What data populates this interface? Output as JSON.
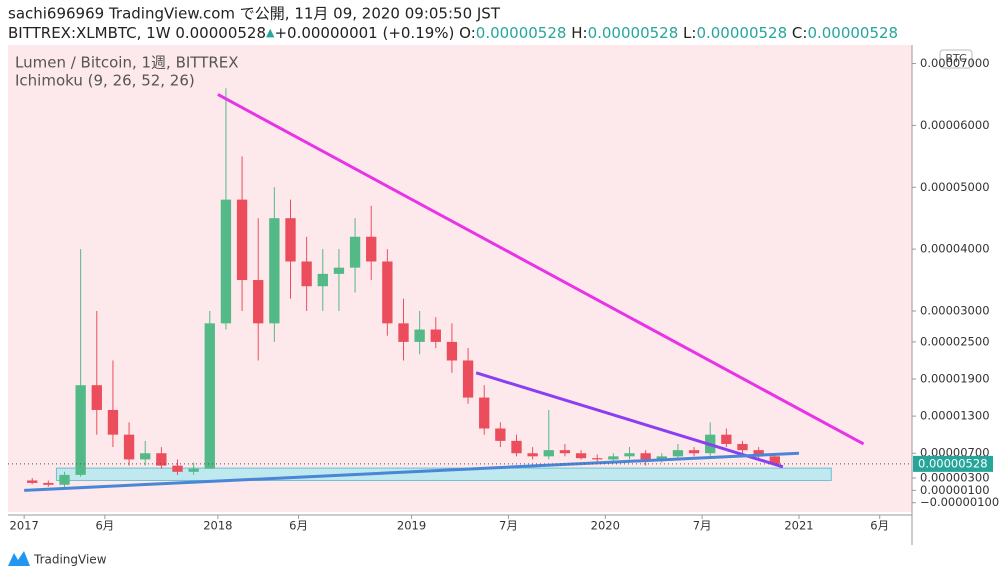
{
  "header": {
    "line1": "sachi696969 TradingView.com で公開, 11月 09, 2020 09:05:50 JST",
    "symbol": "BITTREX:XLMBTC, 1W",
    "last": "0.00000528",
    "arrow": "▲",
    "change": "+0.00000001 (+0.19%)",
    "ohlc": [
      {
        "label": "O:",
        "value": "0.00000528"
      },
      {
        "label": "H:",
        "value": "0.00000528"
      },
      {
        "label": "L:",
        "value": "0.00000528"
      },
      {
        "label": "C:",
        "value": "0.00000528"
      }
    ]
  },
  "chart_data": {
    "type": "candlestick",
    "title": "Lumen / Bitcoin, 1週, BITTREX",
    "indicator": "Ichimoku (9, 26, 52, 26)",
    "currency": "BTC",
    "up_color": "#53b987",
    "down_color": "#eb4d5c",
    "x": [
      "2017-01",
      "2017-02",
      "2017-03",
      "2017-04",
      "2017-05",
      "2017-06",
      "2017-07",
      "2017-08",
      "2017-09",
      "2017-10",
      "2017-11",
      "2017-12",
      "2018-01",
      "2018-02",
      "2018-03",
      "2018-04",
      "2018-05",
      "2018-06",
      "2018-07",
      "2018-08",
      "2018-09",
      "2018-10",
      "2018-11",
      "2018-12",
      "2019-01",
      "2019-02",
      "2019-03",
      "2019-04",
      "2019-05",
      "2019-06",
      "2019-07",
      "2019-08",
      "2019-09",
      "2019-10",
      "2019-11",
      "2019-12",
      "2020-01",
      "2020-02",
      "2020-03",
      "2020-04",
      "2020-05",
      "2020-06",
      "2020-07",
      "2020-08",
      "2020-09",
      "2020-10",
      "2020-11"
    ],
    "open": [
      2.6e-06,
      2.2e-06,
      1.9e-06,
      3.5e-06,
      1.8e-05,
      1.4e-05,
      1e-05,
      6e-06,
      7e-06,
      5e-06,
      4e-06,
      4.5e-06,
      2.8e-05,
      4.8e-05,
      3.5e-05,
      2.8e-05,
      4.5e-05,
      3.8e-05,
      3.4e-05,
      3.6e-05,
      3.7e-05,
      4.2e-05,
      3.8e-05,
      2.8e-05,
      2.5e-05,
      2.7e-05,
      2.5e-05,
      2.2e-05,
      1.6e-05,
      1.1e-05,
      9e-06,
      7e-06,
      6.5e-06,
      7.5e-06,
      7e-06,
      6.2e-06,
      6e-06,
      6.5e-06,
      7e-06,
      6e-06,
      6.5e-06,
      7.5e-06,
      7e-06,
      1e-05,
      8.5e-06,
      7.5e-06,
      6.5e-06
    ],
    "high": [
      3e-06,
      2.6e-06,
      4e-06,
      4e-05,
      3e-05,
      2.2e-05,
      1.2e-05,
      9e-06,
      8e-06,
      6e-06,
      5.5e-06,
      3e-05,
      6.6e-05,
      5.5e-05,
      4.5e-05,
      5e-05,
      4.8e-05,
      4.2e-05,
      4e-05,
      4e-05,
      4.5e-05,
      4.7e-05,
      4e-05,
      3.2e-05,
      3e-05,
      2.9e-05,
      2.8e-05,
      2.4e-05,
      1.8e-05,
      1.2e-05,
      1e-05,
      8e-06,
      1.4e-05,
      8.5e-06,
      7.5e-06,
      6.8e-06,
      7e-06,
      8e-06,
      7.5e-06,
      7e-06,
      8.5e-06,
      8e-06,
      1.2e-05,
      1.1e-05,
      9e-06,
      8e-06,
      7e-06
    ],
    "low": [
      2e-06,
      1.6e-06,
      1.5e-06,
      3.2e-06,
      1e-05,
      8e-06,
      5e-06,
      5e-06,
      4.5e-06,
      3.5e-06,
      3.5e-06,
      4.5e-06,
      2.7e-05,
      3e-05,
      2.2e-05,
      2.5e-05,
      3.2e-05,
      3e-05,
      3e-05,
      3e-05,
      3.3e-05,
      3.5e-05,
      2.6e-05,
      2.2e-05,
      2.3e-05,
      2.4e-05,
      2e-05,
      1.5e-05,
      1e-05,
      8e-06,
      6.5e-06,
      6e-06,
      6e-06,
      6.5e-06,
      6e-06,
      5.5e-06,
      5.5e-06,
      6e-06,
      5e-06,
      5.5e-06,
      6e-06,
      6.5e-06,
      6.5e-06,
      8e-06,
      7e-06,
      6e-06,
      5e-06
    ],
    "close": [
      2.2e-06,
      1.9e-06,
      3.5e-06,
      1.8e-05,
      1.4e-05,
      1e-05,
      6e-06,
      7e-06,
      5e-06,
      4e-06,
      4.5e-06,
      2.8e-05,
      4.8e-05,
      3.5e-05,
      2.8e-05,
      4.5e-05,
      3.8e-05,
      3.4e-05,
      3.6e-05,
      3.7e-05,
      4.2e-05,
      3.8e-05,
      2.8e-05,
      2.5e-05,
      2.7e-05,
      2.5e-05,
      2.2e-05,
      1.6e-05,
      1.1e-05,
      9e-06,
      7e-06,
      6.5e-06,
      7.5e-06,
      7e-06,
      6.2e-06,
      6e-06,
      6.5e-06,
      7e-06,
      6e-06,
      6.5e-06,
      7.5e-06,
      7e-06,
      1e-05,
      8.5e-06,
      7.5e-06,
      6.5e-06,
      5.28e-06
    ],
    "last_price": {
      "value": 5.28e-06,
      "label": "0.00000528"
    },
    "drawings": [
      {
        "name": "resistance",
        "color": "#e833e8",
        "x": [
          "2018-01",
          "2021-05"
        ],
        "values": [
          6.5e-05,
          8.5e-06
        ]
      },
      {
        "name": "wedge",
        "color": "#8a3ff0",
        "x": [
          "2019-05",
          "2020-12"
        ],
        "values": [
          2e-05,
          4.8e-06
        ]
      },
      {
        "name": "support",
        "color": "#4a86d8",
        "x": [
          "2017-01",
          "2021-01"
        ],
        "values": [
          1e-06,
          7e-06
        ]
      }
    ],
    "zone": {
      "color": "#bfe9ef",
      "x": [
        "2017-03",
        "2021-03"
      ],
      "values": [
        2.6e-06,
        4.6e-06
      ]
    },
    "xlim": [
      "2016-12",
      "2021-08"
    ],
    "xticks": [
      {
        "value": "2017-01",
        "label": "2017"
      },
      {
        "value": "2017-06",
        "label": "6月"
      },
      {
        "value": "2018-01",
        "label": "2018"
      },
      {
        "value": "2018-06",
        "label": "6月"
      },
      {
        "value": "2019-01",
        "label": "2019"
      },
      {
        "value": "2019-07",
        "label": "7月"
      },
      {
        "value": "2020-01",
        "label": "2020"
      },
      {
        "value": "2020-07",
        "label": "7月"
      },
      {
        "value": "2021-01",
        "label": "2021"
      },
      {
        "value": "2021-06",
        "label": "6月"
      }
    ],
    "ylim": [
      -2.5e-06,
      7.3e-05
    ],
    "yticks": [
      {
        "value": 7e-05,
        "label": "0.00007000"
      },
      {
        "value": 6e-05,
        "label": "0.00006000"
      },
      {
        "value": 5e-05,
        "label": "0.00005000"
      },
      {
        "value": 4e-05,
        "label": "0.00004000"
      },
      {
        "value": 3e-05,
        "label": "0.00003000"
      },
      {
        "value": 2.5e-05,
        "label": "0.00002500"
      },
      {
        "value": 1.9e-05,
        "label": "0.00001900"
      },
      {
        "value": 1.3e-05,
        "label": "0.00001300"
      },
      {
        "value": 7e-06,
        "label": "0.00000700"
      },
      {
        "value": 3e-06,
        "label": "0.00000300"
      },
      {
        "value": 1e-06,
        "label": "0.00000100"
      },
      {
        "value": -1e-06,
        "label": "−0.00000100"
      }
    ]
  },
  "footer": {
    "brand": "TradingView"
  }
}
